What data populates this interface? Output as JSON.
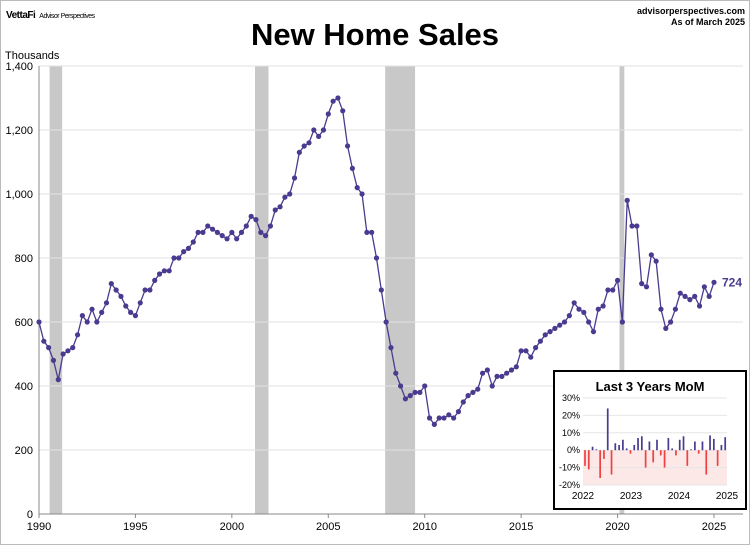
{
  "header": {
    "logo": "VettaFi",
    "logo_sub": "Advisor Perspectives",
    "source": "advisorperspectives.com",
    "as_of": "As of March 2025"
  },
  "chart_data": [
    {
      "type": "line",
      "title": "New Home Sales",
      "ylabel": "Thousands",
      "xlabel": "",
      "ylim": [
        0,
        1400
      ],
      "xlim": [
        1990,
        2026.5
      ],
      "y_ticks": [
        "0",
        "200",
        "400",
        "600",
        "800",
        "1,000",
        "1,200",
        "1,400"
      ],
      "y_tick_values": [
        0,
        200,
        400,
        600,
        800,
        1000,
        1200,
        1400
      ],
      "x_ticks": [
        "1990",
        "1995",
        "2000",
        "2005",
        "2010",
        "2015",
        "2020",
        "2025"
      ],
      "x_tick_values": [
        1990,
        1995,
        2000,
        2005,
        2010,
        2015,
        2020,
        2025
      ],
      "grid": true,
      "recessions": [
        [
          1990.55,
          1991.2
        ],
        [
          2001.2,
          2001.9
        ],
        [
          2007.95,
          2009.5
        ],
        [
          2020.1,
          2020.35
        ]
      ],
      "series": [
        {
          "name": "New Home Sales",
          "color": "#4b3a8f",
          "start": 1990.0,
          "step": 0.25,
          "values": [
            600,
            540,
            520,
            480,
            420,
            500,
            510,
            520,
            560,
            620,
            600,
            640,
            600,
            630,
            660,
            720,
            700,
            680,
            650,
            630,
            620,
            660,
            700,
            700,
            730,
            750,
            760,
            760,
            800,
            800,
            820,
            830,
            850,
            880,
            880,
            900,
            890,
            880,
            870,
            860,
            880,
            860,
            880,
            900,
            930,
            920,
            880,
            870,
            900,
            950,
            960,
            990,
            1000,
            1050,
            1130,
            1150,
            1160,
            1200,
            1180,
            1200,
            1250,
            1290,
            1300,
            1260,
            1150,
            1080,
            1020,
            1000,
            880,
            880,
            800,
            700,
            600,
            520,
            440,
            400,
            360,
            370,
            380,
            380,
            400,
            300,
            280,
            300,
            300,
            310,
            300,
            320,
            350,
            370,
            380,
            390,
            440,
            450,
            400,
            430,
            430,
            440,
            450,
            460,
            510,
            510,
            490,
            520,
            540,
            560,
            570,
            580,
            590,
            600,
            620,
            660,
            640,
            630,
            600,
            570,
            640,
            650,
            700,
            700,
            730,
            600,
            980,
            900,
            900,
            720,
            710,
            810,
            790,
            640,
            580,
            600,
            640,
            690,
            680,
            670,
            680,
            650,
            710,
            680,
            724
          ]
        }
      ],
      "last_label": "724"
    },
    {
      "type": "bar",
      "title": "Last 3 Years MoM",
      "ylim": [
        -20,
        30
      ],
      "y_ticks": [
        "30%",
        "20%",
        "10%",
        "0%",
        "-10%",
        "-20%"
      ],
      "y_tick_values": [
        30,
        20,
        10,
        0,
        -10,
        -20
      ],
      "x_ticks": [
        "2022",
        "2023",
        "2024",
        "2025"
      ],
      "values": [
        -9,
        -11,
        2,
        0.5,
        -16,
        -5,
        24,
        -14,
        4,
        3,
        6,
        1,
        -2,
        3,
        7,
        8,
        -10,
        5,
        -7,
        6,
        -3,
        -10,
        7,
        1,
        -3,
        6,
        8,
        -9,
        0.5,
        5,
        -2,
        5,
        -14,
        8.5,
        6.5,
        -9,
        3,
        7.5
      ],
      "positive_color": "#4b3a8f",
      "negative_color": "#f04040"
    }
  ]
}
